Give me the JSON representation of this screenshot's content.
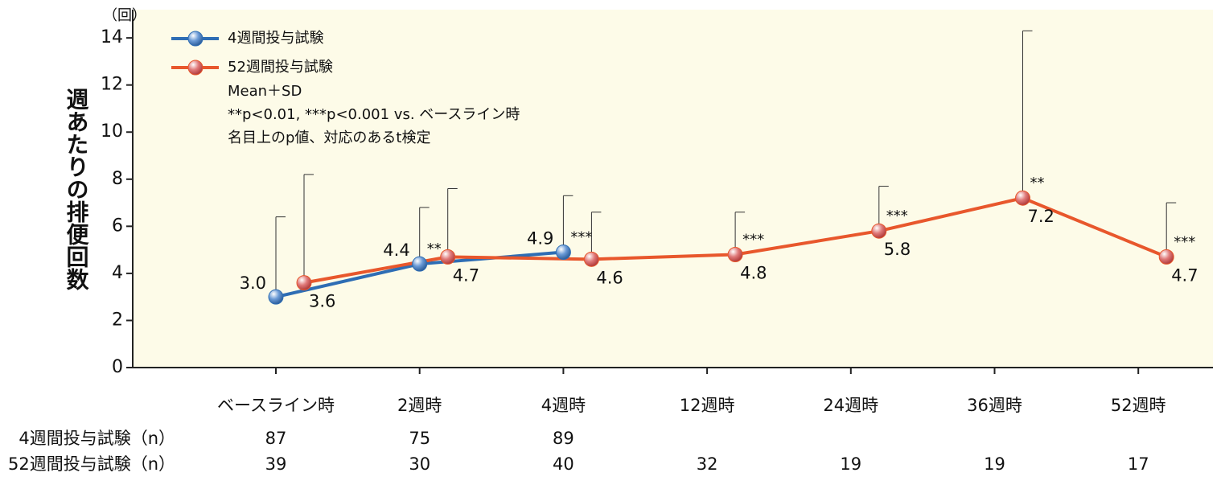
{
  "chart_data": {
    "type": "line",
    "y_axis_label": "週あたりの排便回数",
    "y_unit": "（回）",
    "categories": [
      "ベースライン時",
      "2週時",
      "4週時",
      "12週時",
      "24週時",
      "36週時",
      "52週時"
    ],
    "ylim": [
      0,
      15.2
    ],
    "yticks": [
      0,
      2,
      4,
      6,
      8,
      10,
      12,
      14
    ],
    "grid": false,
    "legend_position": "upper left",
    "notes": [
      "Mean＋SD",
      "**p<0.01, ***p<0.001 vs. ベースライン時",
      "名目上のp値、対応のあるt検定"
    ],
    "series": [
      {
        "name": "4週間投与試験",
        "color": "#2e6db4",
        "values": [
          3.0,
          4.4,
          4.9,
          null,
          null,
          null,
          null
        ],
        "value_labels": [
          "3.0",
          "4.4",
          "4.9",
          null,
          null,
          null,
          null
        ],
        "sd": [
          3.4,
          2.4,
          2.4,
          null,
          null,
          null,
          null
        ],
        "significance": [
          null,
          "**",
          "***",
          null,
          null,
          null,
          null
        ]
      },
      {
        "name": "52週間投与試験",
        "color": "#e8572c",
        "values": [
          3.6,
          4.7,
          4.6,
          4.8,
          5.8,
          7.2,
          4.7
        ],
        "value_labels": [
          "3.6",
          "4.7",
          "4.6",
          "4.8",
          "5.8",
          "7.2",
          "4.7"
        ],
        "sd": [
          4.6,
          2.9,
          2.0,
          1.8,
          1.9,
          7.1,
          2.3
        ],
        "significance": [
          null,
          null,
          null,
          "***",
          "***",
          "**",
          "***"
        ]
      }
    ],
    "n_table": [
      {
        "label": "4週間投与試験（n）",
        "values": [
          87,
          75,
          89,
          null,
          null,
          null,
          null
        ]
      },
      {
        "label": "52週間投与試験（n）",
        "values": [
          39,
          30,
          40,
          32,
          19,
          19,
          17
        ]
      }
    ]
  }
}
